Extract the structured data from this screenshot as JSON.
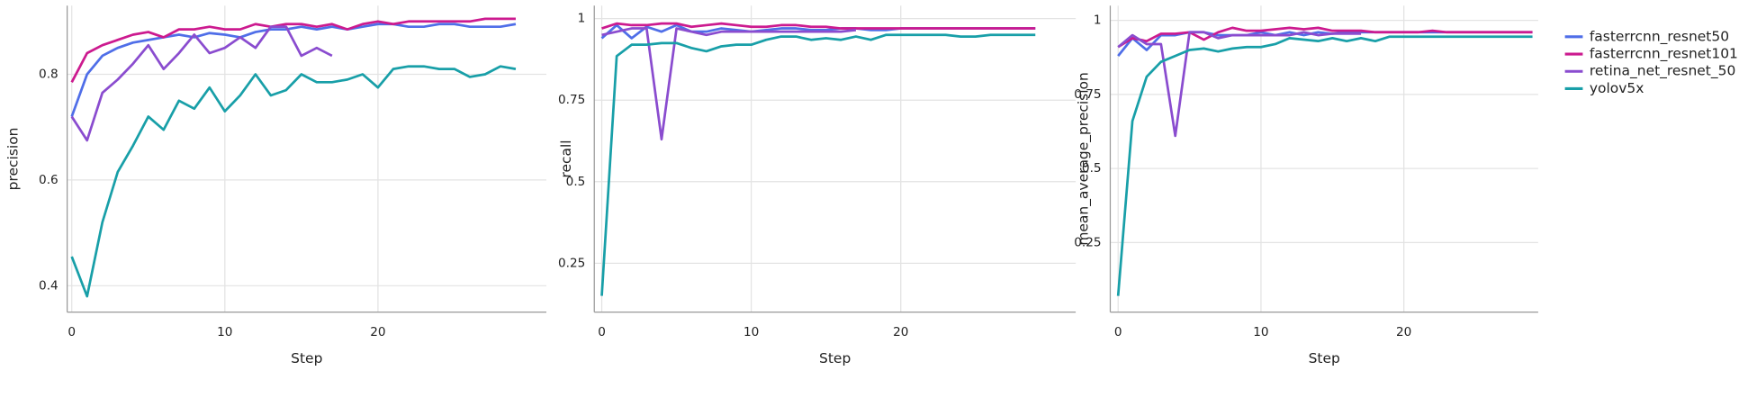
{
  "chart_data": [
    {
      "type": "line",
      "y_label": "precision",
      "x_label": "Step",
      "x": [
        0,
        1,
        2,
        3,
        4,
        5,
        6,
        7,
        8,
        9,
        10,
        11,
        12,
        13,
        14,
        15,
        16,
        17,
        18,
        19,
        20,
        21,
        22,
        23,
        24,
        25,
        26,
        27,
        28,
        29
      ],
      "xlim": [
        -0.3,
        31
      ],
      "xticks": [
        0,
        10,
        20
      ],
      "ylim": [
        0.35,
        0.93
      ],
      "yticks": [
        0.4,
        0.6,
        0.8
      ],
      "grid": true,
      "series": [
        {
          "name": "fasterrcnn_resnet50",
          "color": "#4f6ee8",
          "values": [
            0.72,
            0.8,
            0.835,
            0.85,
            0.86,
            0.865,
            0.87,
            0.875,
            0.87,
            0.878,
            0.875,
            0.87,
            0.88,
            0.885,
            0.885,
            0.89,
            0.885,
            0.89,
            0.885,
            0.89,
            0.895,
            0.895,
            0.89,
            0.89,
            0.895,
            0.895,
            0.89,
            0.89,
            0.89,
            0.895
          ]
        },
        {
          "name": "fasterrcnn_resnet101",
          "color": "#cc1a8f",
          "values": [
            0.785,
            0.84,
            0.855,
            0.865,
            0.875,
            0.88,
            0.87,
            0.885,
            0.885,
            0.89,
            0.885,
            0.885,
            0.895,
            0.89,
            0.895,
            0.895,
            0.89,
            0.895,
            0.885,
            0.895,
            0.9,
            0.895,
            0.9,
            0.9,
            0.9,
            0.9,
            0.9,
            0.905,
            0.905,
            0.905
          ]
        },
        {
          "name": "retina_net_resnet_50",
          "color": "#8a4ccf",
          "values": [
            0.72,
            0.675,
            0.765,
            0.79,
            0.82,
            0.855,
            0.81,
            0.84,
            0.875,
            0.84,
            0.85,
            0.87,
            0.85,
            0.89,
            0.89,
            0.835,
            0.85,
            0.835,
            null,
            null,
            null,
            null,
            null,
            null,
            null,
            null,
            null,
            null,
            null,
            null
          ]
        },
        {
          "name": "yolov5x",
          "color": "#189fa8",
          "values": [
            0.455,
            0.38,
            0.52,
            0.615,
            0.665,
            0.72,
            0.695,
            0.75,
            0.735,
            0.775,
            0.73,
            0.76,
            0.8,
            0.76,
            0.77,
            0.8,
            0.785,
            0.785,
            0.79,
            0.8,
            0.775,
            0.81,
            0.815,
            0.815,
            0.81,
            0.81,
            0.795,
            0.8,
            0.815,
            0.81
          ]
        }
      ]
    },
    {
      "type": "line",
      "y_label": "recall",
      "x_label": "Step",
      "x": [
        0,
        1,
        2,
        3,
        4,
        5,
        6,
        7,
        8,
        9,
        10,
        11,
        12,
        13,
        14,
        15,
        16,
        17,
        18,
        19,
        20,
        21,
        22,
        23,
        24,
        25,
        26,
        27,
        28,
        29
      ],
      "xlim": [
        -0.5,
        31.7
      ],
      "xticks": [
        0,
        10,
        20
      ],
      "ylim": [
        0.1,
        1.04
      ],
      "yticks": [
        0.25,
        0.5,
        0.75,
        1
      ],
      "grid": true,
      "series": [
        {
          "name": "fasterrcnn_resnet50",
          "color": "#4f6ee8",
          "values": [
            0.94,
            0.98,
            0.94,
            0.975,
            0.96,
            0.98,
            0.96,
            0.96,
            0.97,
            0.965,
            0.96,
            0.965,
            0.97,
            0.97,
            0.965,
            0.965,
            0.97,
            0.97,
            0.965,
            0.965,
            0.97,
            0.97,
            0.97,
            0.97,
            0.97,
            0.97,
            0.97,
            0.97,
            0.97,
            0.97
          ]
        },
        {
          "name": "fasterrcnn_resnet101",
          "color": "#cc1a8f",
          "values": [
            0.97,
            0.985,
            0.98,
            0.98,
            0.985,
            0.985,
            0.975,
            0.98,
            0.985,
            0.98,
            0.975,
            0.975,
            0.98,
            0.98,
            0.975,
            0.975,
            0.97,
            0.97,
            0.97,
            0.97,
            0.97,
            0.97,
            0.97,
            0.97,
            0.97,
            0.97,
            0.97,
            0.97,
            0.97,
            0.97
          ]
        },
        {
          "name": "retina_net_resnet_50",
          "color": "#8a4ccf",
          "values": [
            0.95,
            0.96,
            0.97,
            0.97,
            0.63,
            0.97,
            0.96,
            0.95,
            0.96,
            0.96,
            0.96,
            0.96,
            0.96,
            0.96,
            0.96,
            0.96,
            0.96,
            0.965,
            null,
            null,
            null,
            null,
            null,
            null,
            null,
            null,
            null,
            null,
            null,
            null
          ]
        },
        {
          "name": "yolov5x",
          "color": "#189fa8",
          "values": [
            0.15,
            0.885,
            0.92,
            0.92,
            0.925,
            0.925,
            0.91,
            0.9,
            0.915,
            0.92,
            0.92,
            0.935,
            0.945,
            0.945,
            0.935,
            0.94,
            0.935,
            0.945,
            0.935,
            0.95,
            0.95,
            0.95,
            0.95,
            0.95,
            0.945,
            0.945,
            0.95,
            0.95,
            0.95,
            0.95
          ]
        }
      ]
    },
    {
      "type": "line",
      "y_label": "mean_average_precision",
      "x_label": "Step",
      "x": [
        0,
        1,
        2,
        3,
        4,
        5,
        6,
        7,
        8,
        9,
        10,
        11,
        12,
        13,
        14,
        15,
        16,
        17,
        18,
        19,
        20,
        21,
        22,
        23,
        24,
        25,
        26,
        27,
        28,
        29
      ],
      "xlim": [
        -0.55,
        29.4
      ],
      "xticks": [
        0,
        10,
        20
      ],
      "ylim": [
        0.015,
        1.05
      ],
      "yticks": [
        0.25,
        0.5,
        0.75,
        1
      ],
      "grid": true,
      "series": [
        {
          "name": "fasterrcnn_resnet50",
          "color": "#4f6ee8",
          "values": [
            0.88,
            0.94,
            0.9,
            0.95,
            0.95,
            0.96,
            0.96,
            0.95,
            0.95,
            0.95,
            0.96,
            0.95,
            0.96,
            0.95,
            0.96,
            0.955,
            0.96,
            0.96,
            0.96,
            0.96,
            0.96,
            0.96,
            0.96,
            0.96,
            0.96,
            0.96,
            0.96,
            0.96,
            0.96,
            0.96
          ]
        },
        {
          "name": "fasterrcnn_resnet101",
          "color": "#cc1a8f",
          "values": [
            0.91,
            0.94,
            0.93,
            0.955,
            0.955,
            0.96,
            0.935,
            0.96,
            0.975,
            0.965,
            0.965,
            0.97,
            0.975,
            0.97,
            0.975,
            0.965,
            0.965,
            0.965,
            0.96,
            0.96,
            0.96,
            0.96,
            0.965,
            0.96,
            0.96,
            0.96,
            0.96,
            0.96,
            0.96,
            0.96
          ]
        },
        {
          "name": "retina_net_resnet_50",
          "color": "#8a4ccf",
          "values": [
            0.91,
            0.95,
            0.92,
            0.92,
            0.61,
            0.96,
            0.96,
            0.94,
            0.95,
            0.95,
            0.95,
            0.95,
            0.95,
            0.96,
            0.95,
            0.955,
            0.955,
            0.955,
            null,
            null,
            null,
            null,
            null,
            null,
            null,
            null,
            null,
            null,
            null,
            null
          ]
        },
        {
          "name": "yolov5x",
          "color": "#189fa8",
          "values": [
            0.07,
            0.66,
            0.81,
            0.86,
            0.88,
            0.9,
            0.905,
            0.895,
            0.905,
            0.91,
            0.91,
            0.92,
            0.94,
            0.935,
            0.93,
            0.94,
            0.93,
            0.94,
            0.93,
            0.945,
            0.945,
            0.945,
            0.945,
            0.945,
            0.945,
            0.945,
            0.945,
            0.945,
            0.945,
            0.945
          ]
        }
      ]
    }
  ]
}
